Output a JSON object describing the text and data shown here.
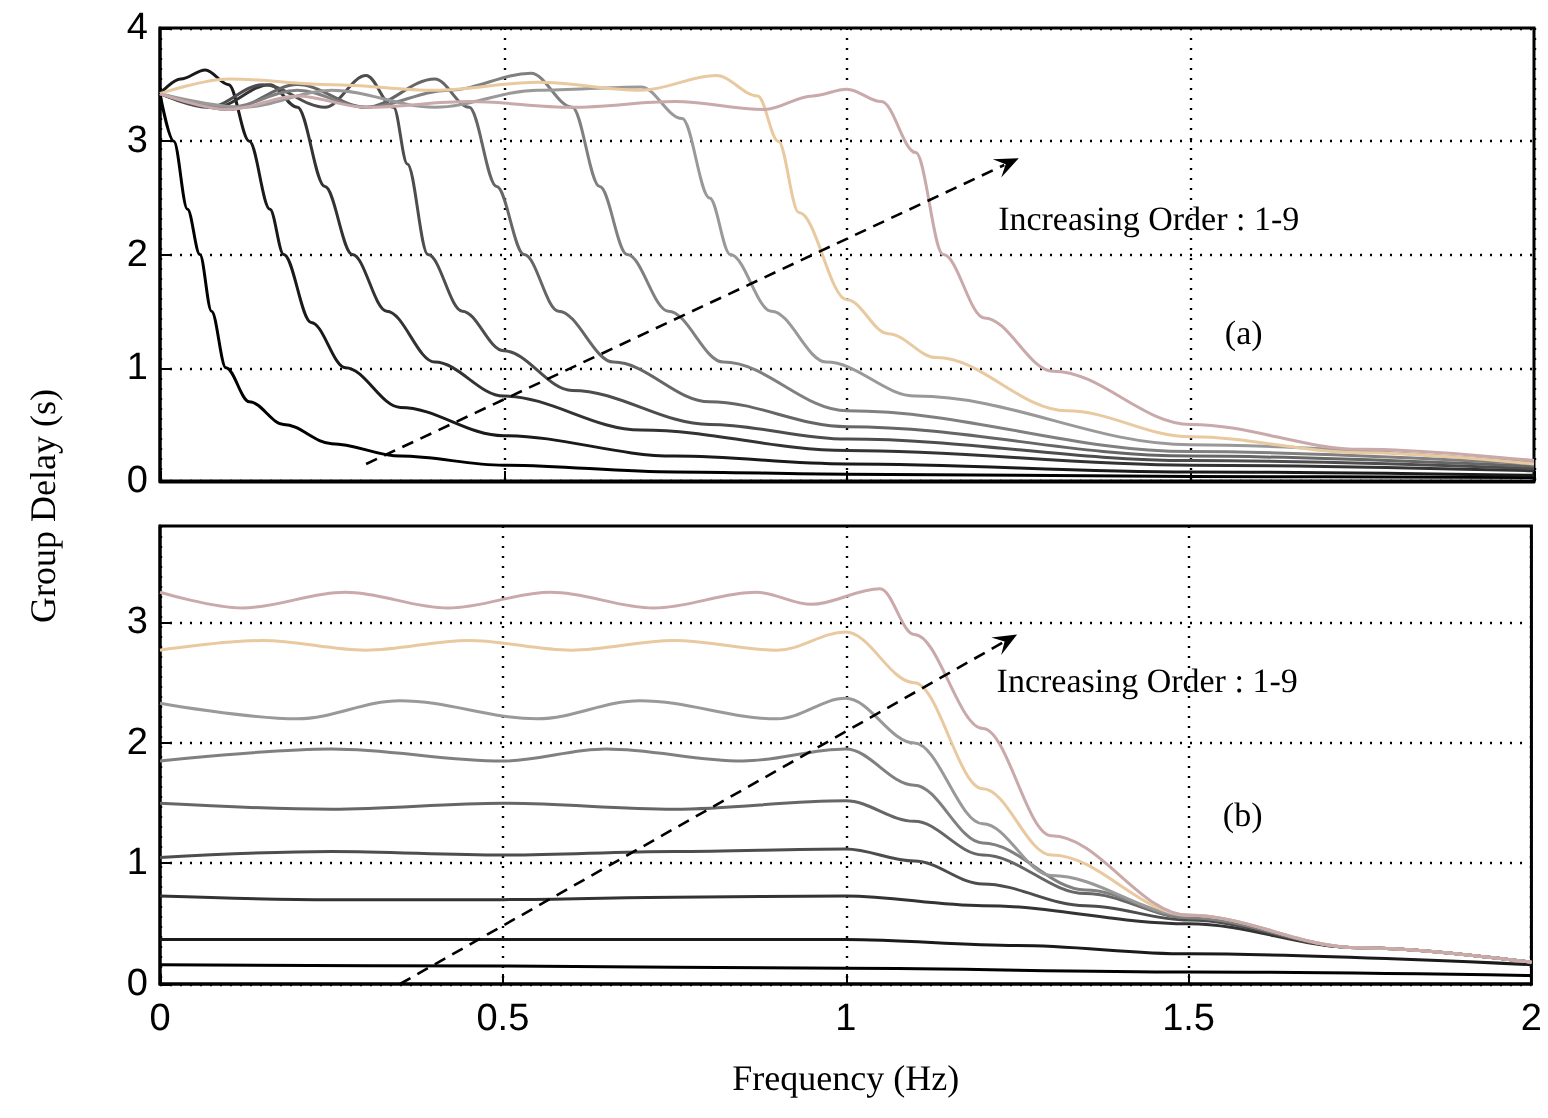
{
  "chart_data": [
    {
      "type": "line",
      "ylabel": "Group Delay (s)",
      "xlim": [
        0,
        2
      ],
      "xticks": [
        0,
        0.5,
        1,
        1.5,
        2
      ],
      "ylim": [
        0,
        4
      ],
      "yticks": [
        0,
        1,
        2,
        3,
        4
      ],
      "grid": true,
      "tick_labels": "y",
      "marker": "none",
      "annotations": [
        "Increasing Order : 1-9",
        "(a)"
      ],
      "series": [
        {
          "color": "#000000",
          "x": [
            0,
            0.02,
            0.04,
            0.058,
            0.075,
            0.096,
            0.13,
            0.18,
            0.25,
            0.35,
            0.5,
            0.75,
            1,
            1.5,
            2
          ],
          "values": [
            3.42,
            3.0,
            2.4,
            2.0,
            1.5,
            1.0,
            0.7,
            0.5,
            0.33,
            0.22,
            0.14,
            0.08,
            0.06,
            0.04,
            0.03
          ]
        },
        {
          "color": "#1a1a1a",
          "x": [
            0,
            0.03,
            0.066,
            0.1,
            0.13,
            0.16,
            0.18,
            0.22,
            0.27,
            0.35,
            0.5,
            0.75,
            1,
            1.5,
            2
          ],
          "values": [
            3.42,
            3.55,
            3.63,
            3.5,
            3.0,
            2.4,
            2.0,
            1.4,
            1.0,
            0.65,
            0.4,
            0.22,
            0.15,
            0.08,
            0.05
          ]
        },
        {
          "color": "#333333",
          "x": [
            0,
            0.08,
            0.16,
            0.2,
            0.24,
            0.28,
            0.33,
            0.4,
            0.5,
            0.7,
            1,
            1.5,
            2
          ],
          "values": [
            3.42,
            3.3,
            3.5,
            3.3,
            2.6,
            2.0,
            1.5,
            1.05,
            0.75,
            0.45,
            0.27,
            0.14,
            0.09
          ]
        },
        {
          "color": "#4d4d4d",
          "x": [
            0,
            0.07,
            0.15,
            0.24,
            0.3,
            0.34,
            0.36,
            0.39,
            0.44,
            0.5,
            0.6,
            0.8,
            1,
            1.5,
            2
          ],
          "values": [
            3.42,
            3.3,
            3.5,
            3.3,
            3.58,
            3.3,
            2.8,
            2.0,
            1.5,
            1.15,
            0.8,
            0.5,
            0.37,
            0.18,
            0.11
          ]
        },
        {
          "color": "#666666",
          "x": [
            0,
            0.1,
            0.2,
            0.3,
            0.4,
            0.45,
            0.49,
            0.53,
            0.58,
            0.66,
            0.8,
            1,
            1.5,
            2
          ],
          "values": [
            3.42,
            3.28,
            3.5,
            3.3,
            3.55,
            3.3,
            2.6,
            2.0,
            1.5,
            1.05,
            0.7,
            0.48,
            0.22,
            0.13
          ]
        },
        {
          "color": "#808080",
          "x": [
            0,
            0.1,
            0.2,
            0.3,
            0.42,
            0.54,
            0.6,
            0.64,
            0.68,
            0.74,
            0.82,
            1,
            1.5,
            2
          ],
          "values": [
            3.42,
            3.3,
            3.45,
            3.3,
            3.45,
            3.6,
            3.3,
            2.6,
            2.0,
            1.5,
            1.05,
            0.62,
            0.26,
            0.15
          ]
        },
        {
          "color": "#999999",
          "x": [
            0,
            0.12,
            0.25,
            0.4,
            0.55,
            0.7,
            0.76,
            0.8,
            0.83,
            0.89,
            0.97,
            1.1,
            1.5,
            2
          ],
          "values": [
            3.42,
            3.3,
            3.45,
            3.3,
            3.45,
            3.48,
            3.2,
            2.5,
            2.0,
            1.5,
            1.05,
            0.75,
            0.32,
            0.16
          ]
        },
        {
          "color": "#e8c9a0",
          "x": [
            0,
            0.1,
            0.25,
            0.4,
            0.55,
            0.7,
            0.81,
            0.87,
            0.9,
            0.93,
            1,
            1.06,
            1.13,
            1.32,
            1.5,
            1.75,
            2
          ],
          "values": [
            3.42,
            3.55,
            3.5,
            3.45,
            3.52,
            3.45,
            3.58,
            3.4,
            3.0,
            2.37,
            1.6,
            1.3,
            1.09,
            0.62,
            0.39,
            0.25,
            0.15
          ]
        },
        {
          "color": "#c9a9aa",
          "x": [
            0,
            0.1,
            0.2,
            0.3,
            0.45,
            0.6,
            0.75,
            0.88,
            0.95,
            1,
            1.05,
            1.1,
            1.14,
            1.2,
            1.3,
            1.5,
            1.75,
            2
          ],
          "values": [
            3.42,
            3.28,
            3.4,
            3.3,
            3.35,
            3.3,
            3.35,
            3.28,
            3.4,
            3.46,
            3.35,
            2.9,
            2.0,
            1.44,
            0.97,
            0.5,
            0.28,
            0.18
          ]
        }
      ]
    },
    {
      "type": "line",
      "xlabel": "Frequency (Hz)",
      "xlim": [
        0,
        2
      ],
      "xticks": [
        0,
        0.5,
        1,
        1.5,
        2
      ],
      "ylim": [
        0,
        3.8
      ],
      "yticks": [
        0,
        1,
        2,
        3
      ],
      "grid": true,
      "marker": "none",
      "annotations": [
        "Increasing Order : 1-9",
        "(b)"
      ],
      "series": [
        {
          "color": "#000000",
          "x": [
            0,
            0.5,
            1,
            1.5,
            2
          ],
          "values": [
            0.16,
            0.15,
            0.13,
            0.1,
            0.07
          ]
        },
        {
          "color": "#1a1a1a",
          "x": [
            0,
            0.5,
            1,
            1.25,
            1.5,
            2
          ],
          "values": [
            0.37,
            0.37,
            0.37,
            0.32,
            0.25,
            0.16
          ]
        },
        {
          "color": "#333333",
          "x": [
            0,
            0.25,
            0.5,
            0.75,
            1,
            1.2,
            1.5,
            1.75,
            2
          ],
          "values": [
            0.73,
            0.7,
            0.7,
            0.72,
            0.73,
            0.65,
            0.5,
            0.3,
            0.18
          ]
        },
        {
          "color": "#4d4d4d",
          "x": [
            0,
            0.25,
            0.5,
            0.75,
            1,
            1.1,
            1.2,
            1.35,
            1.5,
            1.75,
            2
          ],
          "values": [
            1.05,
            1.1,
            1.07,
            1.1,
            1.12,
            1.02,
            0.83,
            0.65,
            0.53,
            0.3,
            0.18
          ]
        },
        {
          "color": "#666666",
          "x": [
            0,
            0.25,
            0.5,
            0.75,
            1,
            1.1,
            1.2,
            1.35,
            1.5,
            1.75,
            2
          ],
          "values": [
            1.5,
            1.45,
            1.5,
            1.45,
            1.52,
            1.35,
            1.07,
            0.75,
            0.55,
            0.3,
            0.18
          ]
        },
        {
          "color": "#808080",
          "x": [
            0,
            0.25,
            0.5,
            0.65,
            0.85,
            1,
            1.1,
            1.2,
            1.35,
            1.5,
            1.75,
            2
          ],
          "values": [
            1.85,
            1.95,
            1.85,
            1.95,
            1.85,
            1.95,
            1.65,
            1.17,
            0.78,
            0.55,
            0.3,
            0.18
          ]
        },
        {
          "color": "#999999",
          "x": [
            0,
            0.2,
            0.35,
            0.55,
            0.7,
            0.9,
            1,
            1.1,
            1.2,
            1.3,
            1.5,
            1.75,
            2
          ],
          "values": [
            2.33,
            2.2,
            2.35,
            2.2,
            2.35,
            2.2,
            2.37,
            2.0,
            1.33,
            0.9,
            0.57,
            0.3,
            0.18
          ]
        },
        {
          "color": "#e8c9a0",
          "x": [
            0,
            0.15,
            0.3,
            0.45,
            0.6,
            0.75,
            0.9,
            1,
            1.1,
            1.2,
            1.3,
            1.5,
            1.75,
            2
          ],
          "values": [
            2.77,
            2.85,
            2.77,
            2.85,
            2.77,
            2.85,
            2.77,
            2.92,
            2.5,
            1.62,
            1.07,
            0.57,
            0.3,
            0.18
          ]
        },
        {
          "color": "#c9a9aa",
          "x": [
            0,
            0.12,
            0.27,
            0.42,
            0.57,
            0.72,
            0.87,
            0.95,
            1.05,
            1.1,
            1.2,
            1.3,
            1.5,
            1.75,
            2
          ],
          "values": [
            3.25,
            3.12,
            3.25,
            3.12,
            3.25,
            3.12,
            3.25,
            3.15,
            3.28,
            2.9,
            2.12,
            1.23,
            0.57,
            0.3,
            0.18
          ]
        }
      ]
    }
  ]
}
